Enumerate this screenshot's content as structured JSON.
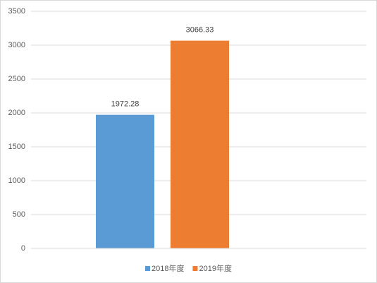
{
  "chart_data": {
    "type": "bar",
    "categories": [
      null
    ],
    "series": [
      {
        "name": "2018年度",
        "color": "#5b9bd5",
        "values": [
          1972.28
        ]
      },
      {
        "name": "2019年度",
        "color": "#ed7d31",
        "values": [
          3066.33
        ]
      }
    ],
    "ylim": [
      0,
      3500
    ],
    "yticks": [
      0,
      500,
      1000,
      1500,
      2000,
      2500,
      3000,
      3500
    ],
    "grid": true,
    "legend": "bottom",
    "data_labels": true
  }
}
